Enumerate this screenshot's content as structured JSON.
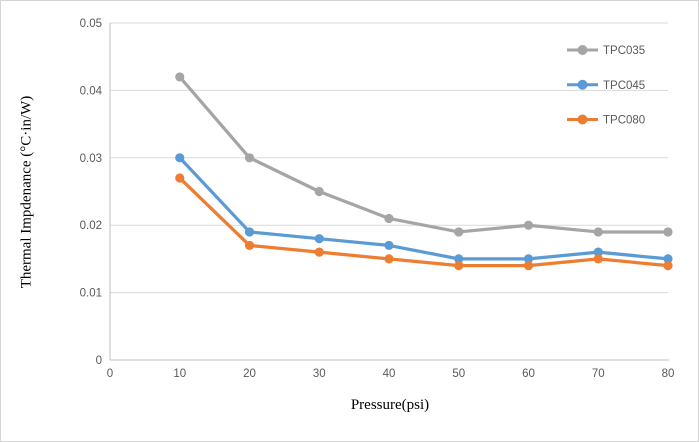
{
  "chart_data": {
    "type": "line",
    "title": "",
    "xlabel": "Pressure(psi)",
    "ylabel": "Thermal Impdenance (°C·in/W)",
    "x": [
      10,
      20,
      30,
      40,
      50,
      60,
      70,
      80
    ],
    "xlim": [
      0,
      80
    ],
    "ylim": [
      0,
      0.05
    ],
    "xticks": [
      0,
      10,
      20,
      30,
      40,
      50,
      60,
      70,
      80
    ],
    "xtick_labels": [
      "0",
      "10",
      "20",
      "30",
      "40",
      "50",
      "60",
      "70",
      "80"
    ],
    "yticks": [
      0,
      0.01,
      0.02,
      0.03,
      0.04,
      0.05
    ],
    "ytick_labels": [
      "0",
      "0.01",
      "0.02",
      "0.03",
      "0.04",
      "0.05"
    ],
    "grid": "horizontal-major",
    "legend_position": "right",
    "series": [
      {
        "name": "TPC035",
        "color": "#a5a5a5",
        "values": [
          0.042,
          0.03,
          0.025,
          0.021,
          0.019,
          0.02,
          0.019,
          0.019
        ]
      },
      {
        "name": "TPC045",
        "color": "#5b9bd5",
        "values": [
          0.03,
          0.019,
          0.018,
          0.017,
          0.015,
          0.015,
          0.016,
          0.015
        ]
      },
      {
        "name": "TPC080",
        "color": "#ed7d31",
        "values": [
          0.027,
          0.017,
          0.016,
          0.015,
          0.014,
          0.014,
          0.015,
          0.014
        ]
      }
    ],
    "colors": {
      "background": "#ffffff",
      "window_border": "#d5d5d5",
      "gridline": "#d9d9d9",
      "axis_line": "#bfbfbf",
      "tick_text": "#595959",
      "legend_text": "#595959",
      "axis_title_text": "#000000"
    }
  }
}
